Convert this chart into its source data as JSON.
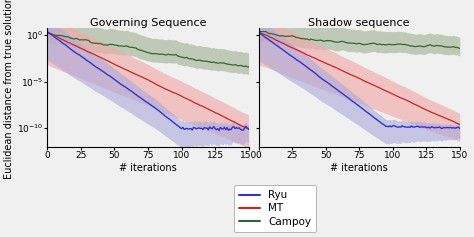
{
  "title_left": "Governing Sequence",
  "title_right": "Shadow sequence",
  "ylabel": "Euclidean distance from true solution",
  "xlabel": "# iterations",
  "xlim": [
    0,
    150
  ],
  "n_iter": 151,
  "ryu_color": "#3333cc",
  "ryu_fill_color": "#aaaadd",
  "mt_color": "#cc2222",
  "mt_fill_color": "#f0aaaa",
  "campoy_color": "#336633",
  "campoy_fill_color": "#99aa88",
  "background_color": "#f0f0f0",
  "legend_labels": [
    "Ryu",
    "MT",
    "Campoy"
  ],
  "title_fontsize": 8,
  "label_fontsize": 7,
  "tick_fontsize": 6.5,
  "legend_fontsize": 7.5,
  "ymin": 1e-12,
  "ymax": 5.0
}
